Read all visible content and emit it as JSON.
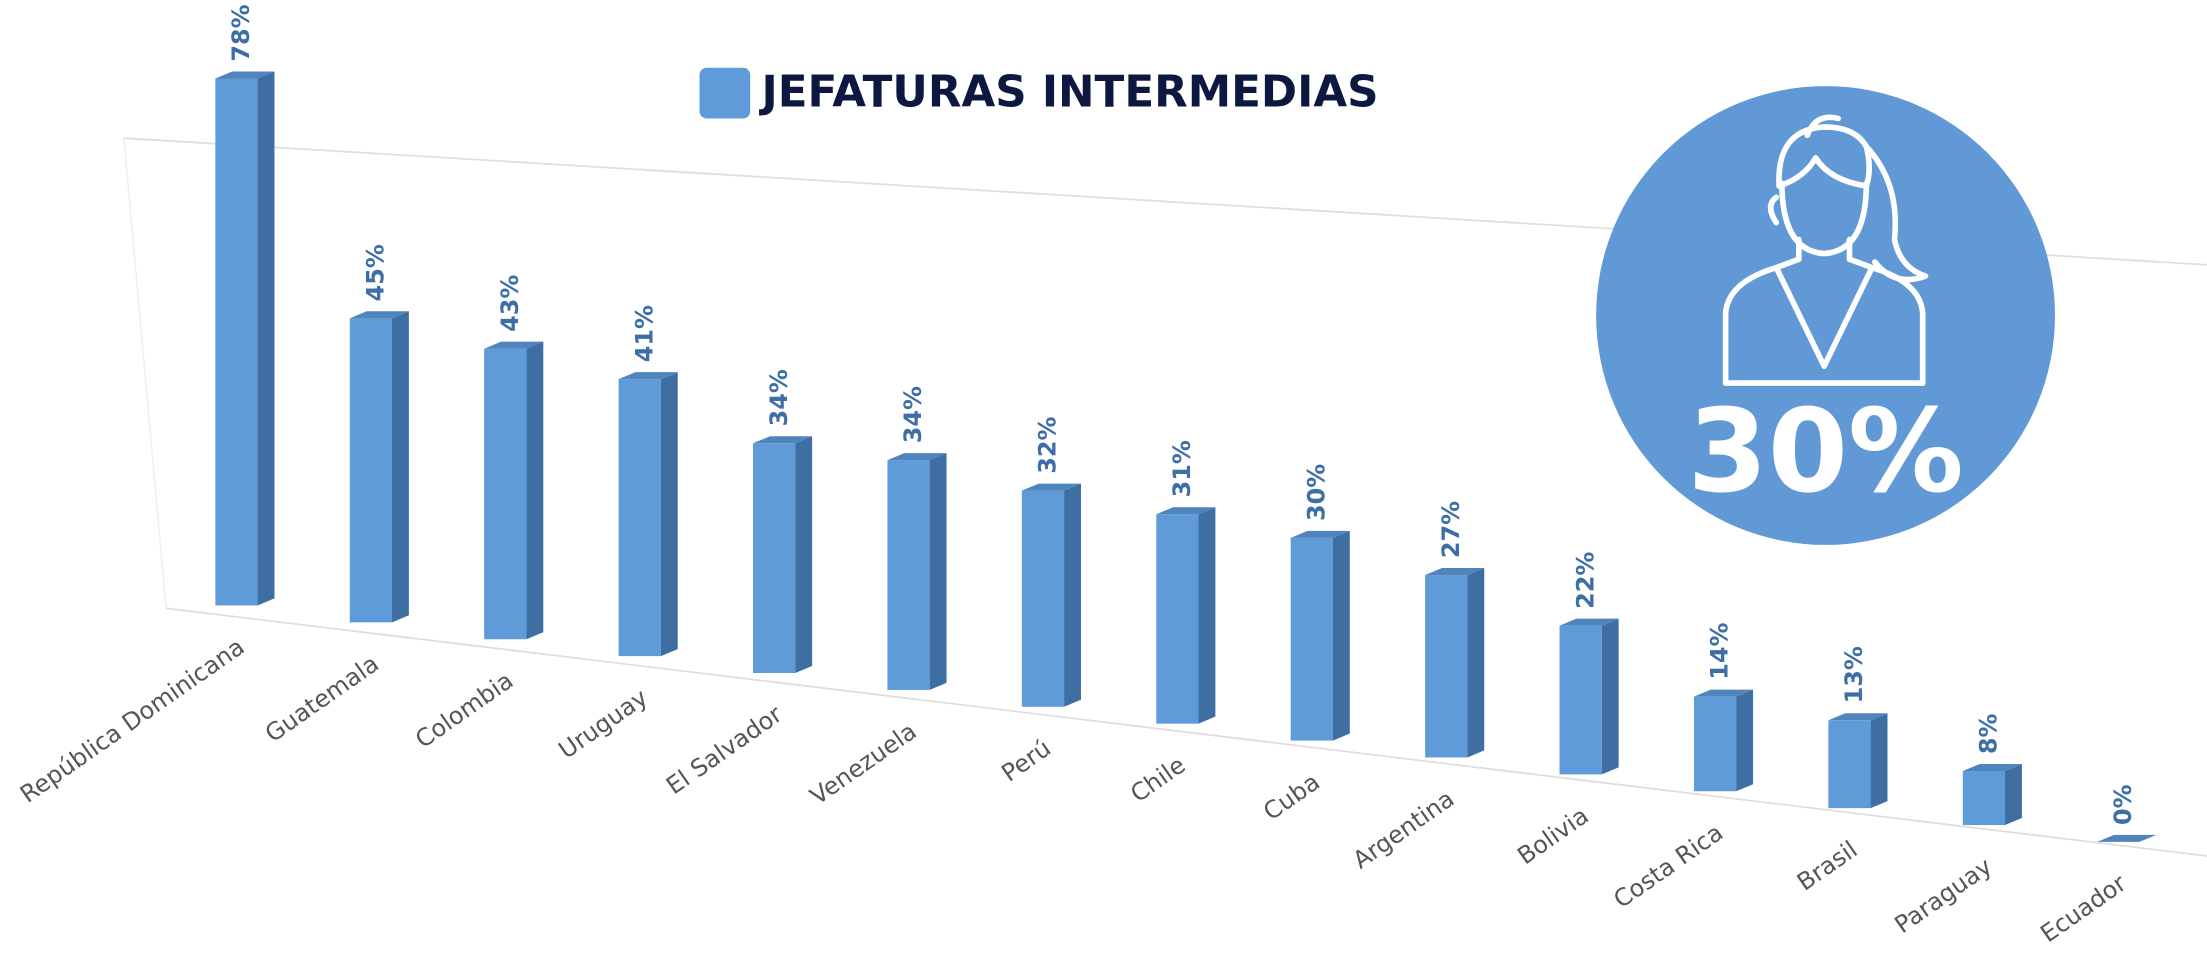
{
  "chart_data": {
    "type": "bar",
    "categories": [
      "República Dominicana",
      "Guatemala",
      "Colombia",
      "Uruguay",
      "El Salvador",
      "Venezuela",
      "Perú",
      "Chile",
      "Cuba",
      "Argentina",
      "Bolivia",
      "Costa Rica",
      "Brasil",
      "Paraguay",
      "Ecuador"
    ],
    "series": [
      {
        "name": "JEFATURAS INTERMEDIAS",
        "color": "#5f9bd8",
        "values": [
          78,
          45,
          43,
          41,
          34,
          34,
          32,
          31,
          30,
          27,
          22,
          14,
          13,
          8,
          0
        ],
        "value_labels": [
          "78%",
          "45%",
          "43%",
          "41%",
          "34%",
          "34%",
          "32%",
          "31%",
          "30%",
          "27%",
          "22%",
          "14%",
          "13%",
          "8%",
          "0%"
        ]
      }
    ],
    "annotation": "30%"
  }
}
